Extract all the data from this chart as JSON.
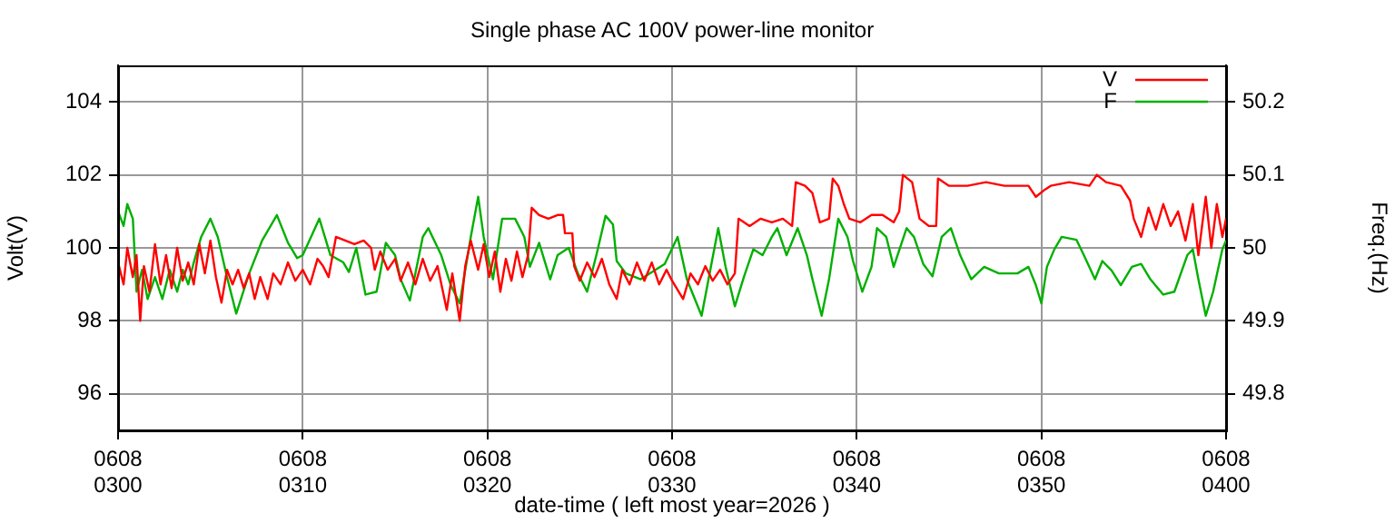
{
  "chart_data": {
    "type": "line",
    "title": "Single phase AC 100V power-line monitor",
    "xlabel": "date-time ( left most year=2026 )",
    "ylabel": "Volt(V)",
    "y2label": "Freq.(Hz)",
    "xlim": [
      "2026-06-08T03:00",
      "2026-06-08T04:00"
    ],
    "xticks": [
      {
        "value": "2026-06-08T03:00",
        "label": "0608\n0300"
      },
      {
        "value": "2026-06-08T03:10",
        "label": "0608\n0310"
      },
      {
        "value": "2026-06-08T03:20",
        "label": "0608\n0320"
      },
      {
        "value": "2026-06-08T03:30",
        "label": "0608\n0330"
      },
      {
        "value": "2026-06-08T03:40",
        "label": "0608\n0340"
      },
      {
        "value": "2026-06-08T03:50",
        "label": "0608\n0350"
      },
      {
        "value": "2026-06-08T04:00",
        "label": "0608\n0400"
      }
    ],
    "ylim": [
      95,
      105
    ],
    "yticks": [
      96,
      98,
      100,
      102,
      104
    ],
    "y2lim": [
      49.75,
      50.25
    ],
    "y2ticks": [
      49.8,
      49.9,
      50,
      50.1,
      50.2
    ],
    "grid": true,
    "legend": "top right",
    "marker": "none",
    "line_style": "solid",
    "series": [
      {
        "name": "V",
        "color": "#ff0000",
        "x": [
          "2026-06-08T03:00:00",
          "2026-06-08T03:00:18",
          "2026-06-08T03:00:30",
          "2026-06-08T03:00:48",
          "2026-06-08T03:01:00",
          "2026-06-08T03:01:12",
          "2026-06-08T03:01:24",
          "2026-06-08T03:01:42",
          "2026-06-08T03:02:00",
          "2026-06-08T03:02:18",
          "2026-06-08T03:02:36",
          "2026-06-08T03:02:54",
          "2026-06-08T03:03:12",
          "2026-06-08T03:03:30",
          "2026-06-08T03:03:48",
          "2026-06-08T03:04:06",
          "2026-06-08T03:04:24",
          "2026-06-08T03:04:42",
          "2026-06-08T03:05:00",
          "2026-06-08T03:05:18",
          "2026-06-08T03:05:36",
          "2026-06-08T03:05:54",
          "2026-06-08T03:06:12",
          "2026-06-08T03:06:30",
          "2026-06-08T03:06:48",
          "2026-06-08T03:07:06",
          "2026-06-08T03:07:24",
          "2026-06-08T03:07:42",
          "2026-06-08T03:08:06",
          "2026-06-08T03:08:24",
          "2026-06-08T03:08:48",
          "2026-06-08T03:09:12",
          "2026-06-08T03:09:36",
          "2026-06-08T03:10:00",
          "2026-06-08T03:10:24",
          "2026-06-08T03:10:48",
          "2026-06-08T03:11:06",
          "2026-06-08T03:11:24",
          "2026-06-08T03:11:48",
          "2026-06-08T03:12:18",
          "2026-06-08T03:12:48",
          "2026-06-08T03:13:18",
          "2026-06-08T03:13:42",
          "2026-06-08T03:13:54",
          "2026-06-08T03:14:12",
          "2026-06-08T03:14:36",
          "2026-06-08T03:15:00",
          "2026-06-08T03:15:18",
          "2026-06-08T03:15:42",
          "2026-06-08T03:16:06",
          "2026-06-08T03:16:30",
          "2026-06-08T03:16:54",
          "2026-06-08T03:17:18",
          "2026-06-08T03:17:48",
          "2026-06-08T03:18:06",
          "2026-06-08T03:18:30",
          "2026-06-08T03:18:48",
          "2026-06-08T03:19:06",
          "2026-06-08T03:19:30",
          "2026-06-08T03:19:48",
          "2026-06-08T03:20:06",
          "2026-06-08T03:20:24",
          "2026-06-08T03:20:42",
          "2026-06-08T03:21:00",
          "2026-06-08T03:21:18",
          "2026-06-08T03:21:36",
          "2026-06-08T03:21:54",
          "2026-06-08T03:22:12",
          "2026-06-08T03:22:24",
          "2026-06-08T03:22:48",
          "2026-06-08T03:23:18",
          "2026-06-08T03:23:48",
          "2026-06-08T03:24:06",
          "2026-06-08T03:24:12",
          "2026-06-08T03:24:36",
          "2026-06-08T03:24:42",
          "2026-06-08T03:25:00",
          "2026-06-08T03:25:24",
          "2026-06-08T03:25:48",
          "2026-06-08T03:26:12",
          "2026-06-08T03:26:36",
          "2026-06-08T03:27:00",
          "2026-06-08T03:27:18",
          "2026-06-08T03:27:42",
          "2026-06-08T03:28:06",
          "2026-06-08T03:28:30",
          "2026-06-08T03:28:54",
          "2026-06-08T03:29:18",
          "2026-06-08T03:29:42",
          "2026-06-08T03:30:00",
          "2026-06-08T03:30:36",
          "2026-06-08T03:31:00",
          "2026-06-08T03:31:24",
          "2026-06-08T03:31:48",
          "2026-06-08T03:32:12",
          "2026-06-08T03:32:36",
          "2026-06-08T03:33:00",
          "2026-06-08T03:33:24",
          "2026-06-08T03:33:36",
          "2026-06-08T03:34:12",
          "2026-06-08T03:34:48",
          "2026-06-08T03:35:24",
          "2026-06-08T03:36:00",
          "2026-06-08T03:36:30",
          "2026-06-08T03:36:42",
          "2026-06-08T03:37:12",
          "2026-06-08T03:37:36",
          "2026-06-08T03:38:00",
          "2026-06-08T03:38:30",
          "2026-06-08T03:38:42",
          "2026-06-08T03:39:00",
          "2026-06-08T03:39:18",
          "2026-06-08T03:39:36",
          "2026-06-08T03:40:12",
          "2026-06-08T03:40:48",
          "2026-06-08T03:41:24",
          "2026-06-08T03:42:00",
          "2026-06-08T03:42:18",
          "2026-06-08T03:42:30",
          "2026-06-08T03:43:00",
          "2026-06-08T03:43:24",
          "2026-06-08T03:43:54",
          "2026-06-08T03:44:18",
          "2026-06-08T03:44:24",
          "2026-06-08T03:45:00",
          "2026-06-08T03:46:00",
          "2026-06-08T03:47:00",
          "2026-06-08T03:48:00",
          "2026-06-08T03:49:18",
          "2026-06-08T03:49:42",
          "2026-06-08T03:50:12",
          "2026-06-08T03:50:30",
          "2026-06-08T03:51:30",
          "2026-06-08T03:52:36",
          "2026-06-08T03:53:00",
          "2026-06-08T03:53:30",
          "2026-06-08T03:54:18",
          "2026-06-08T03:54:48",
          "2026-06-08T03:55:00",
          "2026-06-08T03:55:24",
          "2026-06-08T03:55:48",
          "2026-06-08T03:56:12",
          "2026-06-08T03:56:36",
          "2026-06-08T03:57:00",
          "2026-06-08T03:57:24",
          "2026-06-08T03:57:48",
          "2026-06-08T03:58:12",
          "2026-06-08T03:58:30",
          "2026-06-08T03:58:54",
          "2026-06-08T03:59:12",
          "2026-06-08T03:59:30",
          "2026-06-08T03:59:48",
          "2026-06-08T04:00:00"
        ],
        "values": [
          99.6,
          99.0,
          100.0,
          99.2,
          99.8,
          98.0,
          99.5,
          98.8,
          100.1,
          99.0,
          99.8,
          98.9,
          100.0,
          99.1,
          99.6,
          99.0,
          100.1,
          99.3,
          100.2,
          99.2,
          98.5,
          99.4,
          99.0,
          99.4,
          98.9,
          99.3,
          98.6,
          99.2,
          98.6,
          99.3,
          99.0,
          99.6,
          99.1,
          99.4,
          99.0,
          99.7,
          99.5,
          99.2,
          100.3,
          100.2,
          100.1,
          100.2,
          100.0,
          99.4,
          99.9,
          99.4,
          99.7,
          99.1,
          99.6,
          99.0,
          99.7,
          99.1,
          99.5,
          98.3,
          99.3,
          98.0,
          99.5,
          100.2,
          99.4,
          100.1,
          99.2,
          99.9,
          98.8,
          99.7,
          99.1,
          99.9,
          99.2,
          99.8,
          101.1,
          100.9,
          100.8,
          100.9,
          100.9,
          100.4,
          100.4,
          99.5,
          99.1,
          99.6,
          99.2,
          99.7,
          99.0,
          98.6,
          99.4,
          99.0,
          99.6,
          99.1,
          99.6,
          99.0,
          99.4,
          99.1,
          98.6,
          99.3,
          99.0,
          99.5,
          99.1,
          99.4,
          99.0,
          99.3,
          100.8,
          100.6,
          100.8,
          100.7,
          100.8,
          100.6,
          101.8,
          101.7,
          101.5,
          100.7,
          100.8,
          101.9,
          101.7,
          101.2,
          100.8,
          100.7,
          100.9,
          100.9,
          100.7,
          101.0,
          102.0,
          101.8,
          100.8,
          100.6,
          100.6,
          101.9,
          101.7,
          101.7,
          101.8,
          101.7,
          101.7,
          101.4,
          101.6,
          101.7,
          101.8,
          101.7,
          102.0,
          101.8,
          101.7,
          101.3,
          100.8,
          100.3,
          101.1,
          100.5,
          101.2,
          100.6,
          101.0,
          100.2,
          101.2,
          99.8,
          101.4,
          100.0,
          101.2,
          100.3,
          100.8
        ]
      },
      {
        "name": "F",
        "color": "#00b000",
        "axis": "y2",
        "x": [
          "2026-06-08T03:00:00",
          "2026-06-08T03:00:18",
          "2026-06-08T03:00:30",
          "2026-06-08T03:00:48",
          "2026-06-08T03:01:00",
          "2026-06-08T03:01:18",
          "2026-06-08T03:01:36",
          "2026-06-08T03:02:00",
          "2026-06-08T03:02:24",
          "2026-06-08T03:02:48",
          "2026-06-08T03:03:12",
          "2026-06-08T03:03:30",
          "2026-06-08T03:03:48",
          "2026-06-08T03:04:06",
          "2026-06-08T03:04:30",
          "2026-06-08T03:05:00",
          "2026-06-08T03:05:24",
          "2026-06-08T03:05:54",
          "2026-06-08T03:06:24",
          "2026-06-08T03:07:06",
          "2026-06-08T03:07:48",
          "2026-06-08T03:08:36",
          "2026-06-08T03:09:12",
          "2026-06-08T03:09:42",
          "2026-06-08T03:10:00",
          "2026-06-08T03:10:54",
          "2026-06-08T03:11:30",
          "2026-06-08T03:12:12",
          "2026-06-08T03:12:30",
          "2026-06-08T03:12:54",
          "2026-06-08T03:13:24",
          "2026-06-08T03:14:00",
          "2026-06-08T03:14:30",
          "2026-06-08T03:15:00",
          "2026-06-08T03:15:18",
          "2026-06-08T03:15:48",
          "2026-06-08T03:16:30",
          "2026-06-08T03:16:48",
          "2026-06-08T03:17:30",
          "2026-06-08T03:18:00",
          "2026-06-08T03:18:30",
          "2026-06-08T03:19:06",
          "2026-06-08T03:19:30",
          "2026-06-08T03:19:48",
          "2026-06-08T03:20:18",
          "2026-06-08T03:20:48",
          "2026-06-08T03:21:30",
          "2026-06-08T03:22:00",
          "2026-06-08T03:22:18",
          "2026-06-08T03:22:48",
          "2026-06-08T03:23:24",
          "2026-06-08T03:23:48",
          "2026-06-08T03:24:24",
          "2026-06-08T03:24:54",
          "2026-06-08T03:25:24",
          "2026-06-08T03:25:54",
          "2026-06-08T03:26:24",
          "2026-06-08T03:26:48",
          "2026-06-08T03:27:00",
          "2026-06-08T03:27:30",
          "2026-06-08T03:28:18",
          "2026-06-08T03:29:36",
          "2026-06-08T03:30:18",
          "2026-06-08T03:30:48",
          "2026-06-08T03:31:36",
          "2026-06-08T03:32:06",
          "2026-06-08T03:32:30",
          "2026-06-08T03:32:54",
          "2026-06-08T03:33:24",
          "2026-06-08T03:33:54",
          "2026-06-08T03:34:24",
          "2026-06-08T03:34:54",
          "2026-06-08T03:35:24",
          "2026-06-08T03:35:42",
          "2026-06-08T03:36:12",
          "2026-06-08T03:36:48",
          "2026-06-08T03:37:18",
          "2026-06-08T03:37:36",
          "2026-06-08T03:38:06",
          "2026-06-08T03:38:30",
          "2026-06-08T03:39:00",
          "2026-06-08T03:39:30",
          "2026-06-08T03:39:48",
          "2026-06-08T03:40:18",
          "2026-06-08T03:40:48",
          "2026-06-08T03:41:06",
          "2026-06-08T03:41:36",
          "2026-06-08T03:42:00",
          "2026-06-08T03:42:42",
          "2026-06-08T03:43:06",
          "2026-06-08T03:43:36",
          "2026-06-08T03:44:06",
          "2026-06-08T03:44:36",
          "2026-06-08T03:45:06",
          "2026-06-08T03:45:36",
          "2026-06-08T03:46:12",
          "2026-06-08T03:46:54",
          "2026-06-08T03:47:42",
          "2026-06-08T03:48:42",
          "2026-06-08T03:49:18",
          "2026-06-08T03:49:42",
          "2026-06-08T03:50:00",
          "2026-06-08T03:50:18",
          "2026-06-08T03:50:42",
          "2026-06-08T03:51:06",
          "2026-06-08T03:51:54",
          "2026-06-08T03:52:18",
          "2026-06-08T03:52:54",
          "2026-06-08T03:53:18",
          "2026-06-08T03:53:48",
          "2026-06-08T03:54:18",
          "2026-06-08T03:54:54",
          "2026-06-08T03:55:24",
          "2026-06-08T03:55:54",
          "2026-06-08T03:56:36",
          "2026-06-08T03:57:12",
          "2026-06-08T03:57:54",
          "2026-06-08T03:58:12",
          "2026-06-08T03:58:30",
          "2026-06-08T03:58:54",
          "2026-06-08T03:59:18",
          "2026-06-08T03:59:48",
          "2026-06-08T04:00:00"
        ],
        "values": [
          50.05,
          50.03,
          50.06,
          50.04,
          49.94,
          49.97,
          49.93,
          49.96,
          49.93,
          49.97,
          49.94,
          49.97,
          49.95,
          49.98,
          50.015,
          50.04,
          50.015,
          49.96,
          49.91,
          49.965,
          50.01,
          50.045,
          50.007,
          49.986,
          49.99,
          50.04,
          49.99,
          49.98,
          49.967,
          50.0,
          49.936,
          49.94,
          50.007,
          49.99,
          49.957,
          49.928,
          50.015,
          50.027,
          49.99,
          49.95,
          49.924,
          50.015,
          50.07,
          50.015,
          49.957,
          50.04,
          50.04,
          50.015,
          49.974,
          50.007,
          49.957,
          49.99,
          50.0,
          49.965,
          49.94,
          49.99,
          50.044,
          50.032,
          49.982,
          49.965,
          49.957,
          49.978,
          50.015,
          49.957,
          49.907,
          49.974,
          50.027,
          49.974,
          49.92,
          49.961,
          49.998,
          49.99,
          50.015,
          50.027,
          49.99,
          50.027,
          49.99,
          49.957,
          49.907,
          49.957,
          50.04,
          50.015,
          49.982,
          49.94,
          49.974,
          50.027,
          50.015,
          49.974,
          50.027,
          50.015,
          49.978,
          49.961,
          50.015,
          50.027,
          49.99,
          49.957,
          49.974,
          49.965,
          49.965,
          49.974,
          49.949,
          49.924,
          49.974,
          49.998,
          50.015,
          50.011,
          49.99,
          49.957,
          49.982,
          49.969,
          49.949,
          49.974,
          49.978,
          49.957,
          49.936,
          49.94,
          49.99,
          49.998,
          49.957,
          49.907,
          49.94,
          49.998,
          50.01
        ]
      }
    ]
  }
}
